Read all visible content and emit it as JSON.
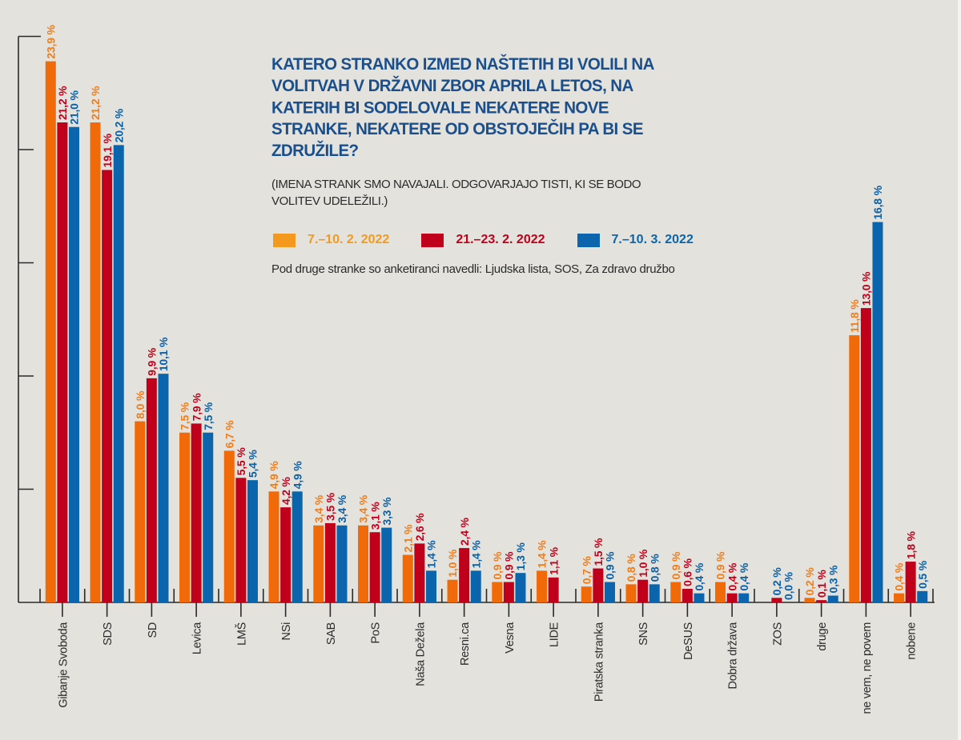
{
  "chart_data": {
    "type": "bar",
    "title": "KATERO STRANKO IZMED NAŠTETIH BI VOLILI NA VOLITVAH V DRŽAVNI ZBOR APRILA LETOS, NA KATERIH BI SODELOVALE NEKATERE NOVE STRANKE, NEKATERE OD OBSTOJEČIH PA BI SE ZDRUŽILE?",
    "subtitle": "(IMENA STRANK SMO NAVAJALI. ODGOVARJAJO TISTI, KI SE BODO VOLITEV UDELEŽILI.)",
    "note": "Pod druge stranke so anketiranci navedli: Ljudska lista, SOS, Za zdravo družbo",
    "xlabel": "",
    "ylabel": "",
    "ylim": [
      0,
      25
    ],
    "yticks": [
      0,
      5,
      10,
      15,
      20,
      25
    ],
    "grid": false,
    "legend_position": "top-center",
    "categories": [
      "Gibanje Svoboda",
      "SDS",
      "SD",
      "Levica",
      "LMŠ",
      "NSi",
      "SAB",
      "PoS",
      "Naša Dežela",
      "Resni.ca",
      "Vesna",
      "LIDE",
      "Piratska stranka",
      "SNS",
      "DeSUS",
      "Dobra  država",
      "ZOS",
      "druge",
      "ne vem, ne povem",
      "nobene"
    ],
    "series": [
      {
        "name": "7.–10. 2. 2022",
        "color": "#f06a0a",
        "label_color": "#f07d1c",
        "values": [
          23.9,
          21.2,
          8.0,
          7.5,
          6.7,
          4.9,
          3.4,
          3.4,
          2.1,
          1.0,
          0.9,
          1.4,
          0.7,
          0.8,
          0.9,
          0.9,
          null,
          0.2,
          11.8,
          0.4
        ],
        "labels": [
          "23,9 %",
          "21,2 %",
          "8,0 %",
          "7,5 %",
          "6,7 %",
          "4,9 %",
          "3,4 %",
          "3,4 %",
          "2,1 %",
          "1,0 %",
          "0,9 %",
          "1,4 %",
          "0,7 %",
          "0,8 %",
          "0,9 %",
          "0,9 %",
          null,
          "0,2 %",
          "11,8 %",
          "0,4 %"
        ]
      },
      {
        "name": "21.–23. 2. 2022",
        "color": "#c0001b",
        "label_color": "#c0001b",
        "values": [
          21.2,
          19.1,
          9.9,
          7.9,
          5.5,
          4.2,
          3.5,
          3.1,
          2.6,
          2.4,
          0.9,
          1.1,
          1.5,
          1.0,
          0.6,
          0.4,
          0.2,
          0.1,
          13.0,
          1.8
        ],
        "labels": [
          "21,2 %",
          "19,1 %",
          "9,9 %",
          "7,9 %",
          "5,5 %",
          "4,2 %",
          "3,5 %",
          "3,1 %",
          "2,6 %",
          "2,4 %",
          "0,9 %",
          "1,1 %",
          "1,5 %",
          "1,0 %",
          "0,6 %",
          "0,4 %",
          "0,2 %",
          "0,1 %",
          "13,0 %",
          "1,8 %"
        ],
        "label_colors_override": {
          "16": "#0a5fa6"
        }
      },
      {
        "name": "7.–10. 3. 2022",
        "color": "#0a65ac",
        "label_color": "#0a5fa6",
        "values": [
          21.0,
          20.2,
          10.1,
          7.5,
          5.4,
          4.9,
          3.4,
          3.3,
          1.4,
          1.4,
          1.3,
          null,
          0.9,
          0.8,
          0.4,
          0.4,
          0.0,
          0.3,
          16.8,
          0.5
        ],
        "labels": [
          "21,0 %",
          "20,2 %",
          "10,1 %",
          "7,5 %",
          "5,4 %",
          "4,9 %",
          "3,4 %",
          "3,3 %",
          "1,4 %",
          "1,4 %",
          "1,3 %",
          null,
          "0,9 %",
          "0,8 %",
          "0,4 %",
          "0,4 %",
          "0,0 %",
          "0,3 %",
          "16,8 %",
          "0,5 %"
        ]
      }
    ]
  },
  "colors": {
    "background": "#e3e2dc",
    "title": "#1b4f8c",
    "axis": "#2a2a2a",
    "text": "#2b2b2b"
  }
}
